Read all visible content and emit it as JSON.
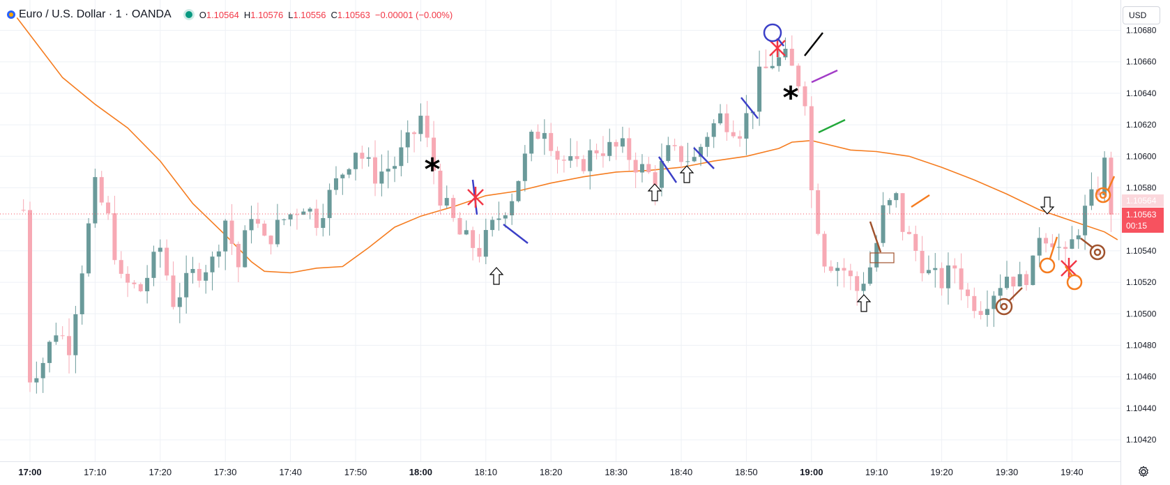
{
  "header": {
    "title": "Euro / U.S. Dollar · 1 · OANDA",
    "ohlc": [
      {
        "label": "O",
        "value": "1.10564"
      },
      {
        "label": "H",
        "value": "1.10576"
      },
      {
        "label": "L",
        "value": "1.10556"
      },
      {
        "label": "C",
        "value": "1.10563"
      },
      {
        "label": "",
        "value": "−0.00001 (−0.00%)"
      }
    ]
  },
  "price_scale": {
    "currency": "USD",
    "upper_label": "1.10564",
    "current_price": "1.10563",
    "countdown": "00:15"
  },
  "colors": {
    "up": "#6a9a9a",
    "down": "#f7a9b4",
    "ma": "#f57c1f",
    "grid": "#eef1f6"
  },
  "chart_data": {
    "type": "candlestick",
    "x_ticks": [
      "17:00",
      "17:10",
      "17:20",
      "17:30",
      "17:40",
      "17:50",
      "18:00",
      "18:10",
      "18:20",
      "18:30",
      "18:40",
      "18:50",
      "19:00",
      "19:10",
      "19:20",
      "19:30",
      "19:40"
    ],
    "x_ticks_bold": [
      "17:00",
      "18:00",
      "19:00"
    ],
    "y_ticks": [
      "1.10680",
      "1.10660",
      "1.10640",
      "1.10620",
      "1.10600",
      "1.10580",
      "1.10560",
      "1.10540",
      "1.10520",
      "1.10500",
      "1.10480",
      "1.10460",
      "1.10440",
      "1.10420"
    ],
    "ylim": [
      1.10413,
      1.10692
    ],
    "grid": true,
    "candles_timeframe_minutes": 1,
    "series": [
      {
        "name": "EURUSD",
        "waypoints": [
          [
            "16:59",
            1.10566
          ],
          [
            "17:00",
            1.1046
          ],
          [
            "17:02",
            1.1047
          ],
          [
            "17:04",
            1.1049
          ],
          [
            "17:06",
            1.1048
          ],
          [
            "17:08",
            1.1053
          ],
          [
            "17:10",
            1.1058
          ],
          [
            "17:12",
            1.1056
          ],
          [
            "17:14",
            1.1052
          ],
          [
            "17:17",
            1.10515
          ],
          [
            "17:20",
            1.10542
          ],
          [
            "17:22",
            1.10508
          ],
          [
            "17:25",
            1.10525
          ],
          [
            "17:28",
            1.10533
          ],
          [
            "17:30",
            1.1056
          ],
          [
            "17:32",
            1.1053
          ],
          [
            "17:34",
            1.10565
          ],
          [
            "17:36",
            1.10545
          ],
          [
            "17:39",
            1.1056
          ],
          [
            "17:42",
            1.1057
          ],
          [
            "17:44",
            1.1056
          ],
          [
            "17:47",
            1.10583
          ],
          [
            "17:50",
            1.10605
          ],
          [
            "17:53",
            1.10588
          ],
          [
            "17:56",
            1.10595
          ],
          [
            "17:59",
            1.10615
          ],
          [
            "18:00",
            1.10625
          ],
          [
            "18:03",
            1.10575
          ],
          [
            "18:06",
            1.1055
          ],
          [
            "18:09",
            1.1054
          ],
          [
            "18:11",
            1.10555
          ],
          [
            "18:14",
            1.10575
          ],
          [
            "18:17",
            1.1061
          ],
          [
            "18:19",
            1.1062
          ],
          [
            "18:21",
            1.106
          ],
          [
            "18:24",
            1.10592
          ],
          [
            "18:27",
            1.10605
          ],
          [
            "18:31",
            1.10605
          ],
          [
            "18:33",
            1.10595
          ],
          [
            "18:36",
            1.10585
          ],
          [
            "18:38",
            1.10602
          ],
          [
            "18:42",
            1.10598
          ],
          [
            "18:44",
            1.10615
          ],
          [
            "18:46",
            1.10625
          ],
          [
            "18:49",
            1.10617
          ],
          [
            "18:51",
            1.10633
          ],
          [
            "18:52",
            1.1065
          ],
          [
            "18:54",
            1.1066
          ],
          [
            "18:56",
            1.10662
          ],
          [
            "18:58",
            1.10648
          ],
          [
            "18:59",
            1.10638
          ],
          [
            "19:00",
            1.10578
          ],
          [
            "19:02",
            1.10535
          ],
          [
            "19:05",
            1.10528
          ],
          [
            "19:07",
            1.10515
          ],
          [
            "19:09",
            1.1053
          ],
          [
            "19:10",
            1.10545
          ],
          [
            "19:11",
            1.10565
          ],
          [
            "19:13",
            1.10573
          ],
          [
            "19:14",
            1.10555
          ],
          [
            "19:16",
            1.1054
          ],
          [
            "19:18",
            1.10525
          ],
          [
            "19:20",
            1.1052
          ],
          [
            "19:22",
            1.1053
          ],
          [
            "19:24",
            1.1051
          ],
          [
            "19:26",
            1.10505
          ],
          [
            "19:28",
            1.10515
          ],
          [
            "19:30",
            1.10525
          ],
          [
            "19:32",
            1.1052
          ],
          [
            "19:34",
            1.1053
          ],
          [
            "19:35",
            1.10552
          ],
          [
            "19:37",
            1.10548
          ],
          [
            "19:39",
            1.10535
          ],
          [
            "19:41",
            1.10555
          ],
          [
            "19:42",
            1.10565
          ],
          [
            "19:44",
            1.1058
          ],
          [
            "19:45",
            1.10595
          ],
          [
            "19:46",
            1.10563
          ]
        ]
      },
      {
        "name": "moving-average",
        "points": [
          [
            "16:58",
            1.10688
          ],
          [
            "17:05",
            1.1065
          ],
          [
            "17:10",
            1.10633
          ],
          [
            "17:15",
            1.10618
          ],
          [
            "17:20",
            1.10597
          ],
          [
            "17:25",
            1.1057
          ],
          [
            "17:30",
            1.1055
          ],
          [
            "17:34",
            1.10533
          ],
          [
            "17:36",
            1.10527
          ],
          [
            "17:40",
            1.10526
          ],
          [
            "17:44",
            1.10529
          ],
          [
            "17:48",
            1.1053
          ],
          [
            "17:52",
            1.10542
          ],
          [
            "17:56",
            1.10555
          ],
          [
            "18:00",
            1.10562
          ],
          [
            "18:05",
            1.10568
          ],
          [
            "18:10",
            1.10575
          ],
          [
            "18:15",
            1.10578
          ],
          [
            "18:20",
            1.10583
          ],
          [
            "18:25",
            1.10587
          ],
          [
            "18:30",
            1.1059
          ],
          [
            "18:35",
            1.10591
          ],
          [
            "18:40",
            1.10593
          ],
          [
            "18:45",
            1.10597
          ],
          [
            "18:50",
            1.106
          ],
          [
            "18:55",
            1.10605
          ],
          [
            "18:57",
            1.10609
          ],
          [
            "19:00",
            1.1061
          ],
          [
            "19:03",
            1.10607
          ],
          [
            "19:06",
            1.10604
          ],
          [
            "19:10",
            1.10603
          ],
          [
            "19:15",
            1.106
          ],
          [
            "19:20",
            1.10593
          ],
          [
            "19:25",
            1.10585
          ],
          [
            "19:30",
            1.10576
          ],
          [
            "19:35",
            1.10566
          ],
          [
            "19:40",
            1.10559
          ],
          [
            "19:45",
            1.10552
          ],
          [
            "19:47",
            1.10547
          ]
        ]
      }
    ]
  }
}
